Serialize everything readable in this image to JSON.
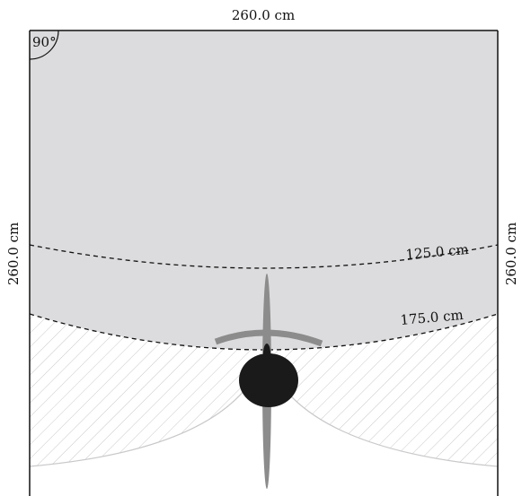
{
  "dimensions": {
    "top": "260.0 cm",
    "left": "260.0 cm",
    "right": "260.0 cm"
  },
  "angle": {
    "label": "90°"
  },
  "arcs": [
    {
      "label": "125.0 cm"
    },
    {
      "label": "175.0 cm"
    }
  ],
  "colors": {
    "room_fill": "#dcdcde",
    "hatch": "#c9c9cb",
    "body": "#1a1a1a",
    "rotor": "#8c8c8c",
    "arc_line": "#111111"
  }
}
